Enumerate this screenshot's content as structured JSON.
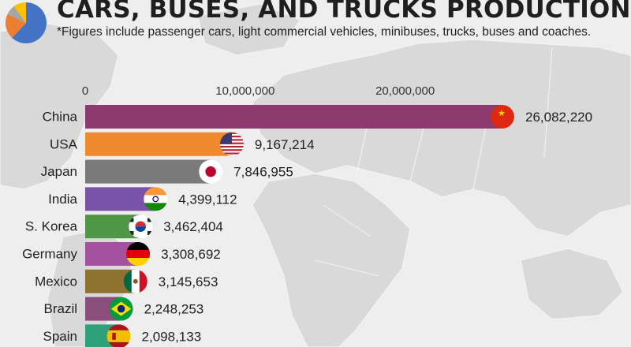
{
  "header": {
    "title": "CARS, BUSES, AND TRUCKS PRODUCTION",
    "subtitle": "*Figures include passenger cars, light commercial vehicles, minibuses, trucks, buses and coaches."
  },
  "colors": {
    "background": "#eeeeee",
    "land": "#d9d9d9",
    "text": "#1f1f1f"
  },
  "logo": {
    "icon": "pie-chart-icon",
    "slice_colors": [
      "#4472c4",
      "#ed7d31",
      "#a5a5a5",
      "#ffc000"
    ]
  },
  "chart_data": {
    "type": "bar",
    "orientation": "horizontal",
    "title": "CARS, BUSES, AND TRUCKS PRODUCTION",
    "subtitle": "*Figures include passenger cars, light commercial vehicles, minibuses, trucks, buses and coaches.",
    "xlim": [
      0,
      27000000
    ],
    "ticks": [
      0,
      10000000,
      20000000
    ],
    "tick_labels": [
      "0",
      "10,000,000",
      "20,000,000"
    ],
    "grid": false,
    "legend": "none",
    "categories": [
      "China",
      "USA",
      "Japan",
      "India",
      "S. Korea",
      "Germany",
      "Mexico",
      "Brazil",
      "Spain"
    ],
    "values": [
      26082220,
      9167214,
      7846955,
      4399112,
      3462404,
      3308692,
      3145653,
      2248253,
      2098133
    ],
    "value_labels": [
      "26,082,220",
      "9,167,214",
      "7,846,955",
      "4,399,112",
      "3,462,404",
      "3,308,692",
      "3,145,653",
      "2,248,253",
      "2,098,133"
    ],
    "bar_colors": [
      "#8d3a6e",
      "#f08a2e",
      "#7a7a7a",
      "#7a52a8",
      "#4f9646",
      "#a452a0",
      "#8e7330",
      "#8c4e7c",
      "#2ea17a"
    ],
    "flag_icons": [
      "china-flag-icon",
      "usa-flag-icon",
      "japan-flag-icon",
      "india-flag-icon",
      "south-korea-flag-icon",
      "germany-flag-icon",
      "mexico-flag-icon",
      "brazil-flag-icon",
      "spain-flag-icon"
    ]
  }
}
